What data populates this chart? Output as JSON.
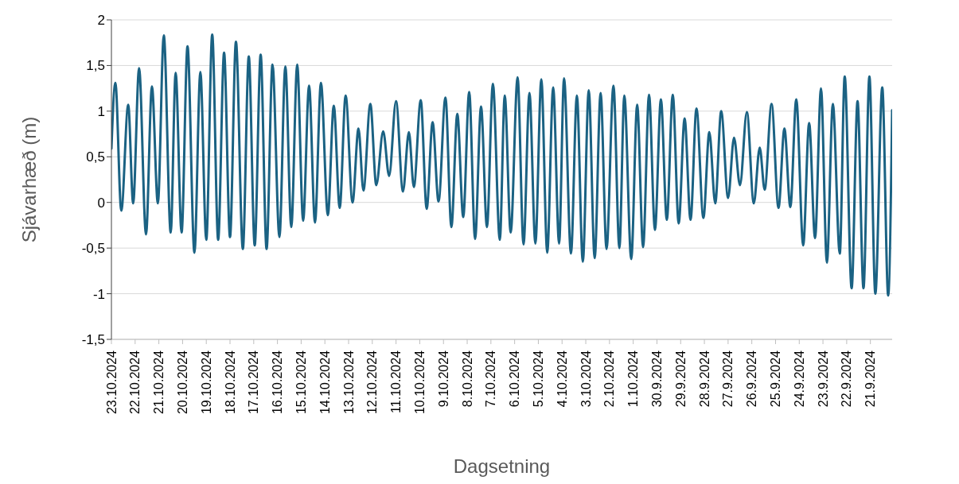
{
  "chart_data": {
    "type": "line",
    "xlabel": "Dagsetning",
    "ylabel": "Sjávarhæð (m)",
    "x": [
      "2024-10-23T00:00",
      "2024-10-22T20:00",
      "2024-10-22T14:00",
      "2024-10-22T07:00",
      "2024-10-22T02:00",
      "2024-10-21T20:00",
      "2024-10-21T13:00",
      "2024-10-21T07:00",
      "2024-10-21T01:00",
      "2024-10-20T19:00",
      "2024-10-20T12:00",
      "2024-10-20T07:00",
      "2024-10-20T01:00",
      "2024-10-19T19:00",
      "2024-10-19T12:00",
      "2024-10-19T06:00",
      "2024-10-19T00:00",
      "2024-10-18T18:00",
      "2024-10-18T12:00",
      "2024-10-18T06:00",
      "2024-10-18T00:00",
      "2024-10-17T18:00",
      "2024-10-17T11:00",
      "2024-10-17T05:00",
      "2024-10-16T23:00",
      "2024-10-16T17:00",
      "2024-10-16T11:00",
      "2024-10-16T05:00",
      "2024-10-15T22:00",
      "2024-10-15T16:00",
      "2024-10-15T10:00",
      "2024-10-15T04:00",
      "2024-10-14T22:00",
      "2024-10-14T16:00",
      "2024-10-14T10:00",
      "2024-10-14T04:00",
      "2024-10-13T21:00",
      "2024-10-13T15:00",
      "2024-10-13T09:00",
      "2024-10-13T03:00",
      "2024-10-12T20:00",
      "2024-10-12T14:00",
      "2024-10-12T09:00",
      "2024-10-12T02:00",
      "2024-10-11T20:00",
      "2024-10-11T13:00",
      "2024-10-11T07:00",
      "2024-10-11T00:00",
      "2024-10-10T17:00",
      "2024-10-10T11:00",
      "2024-10-10T06:00",
      "2024-10-09T23:00",
      "2024-10-09T17:00",
      "2024-10-09T11:00",
      "2024-10-09T05:00",
      "2024-10-08T22:00",
      "2024-10-08T16:00",
      "2024-10-08T10:00",
      "2024-10-08T04:00",
      "2024-10-07T22:00",
      "2024-10-07T16:00",
      "2024-10-07T10:00",
      "2024-10-07T04:00",
      "2024-10-06T22:00",
      "2024-10-06T15:00",
      "2024-10-06T10:00",
      "2024-10-06T04:00",
      "2024-10-05T21:00",
      "2024-10-05T15:00",
      "2024-10-05T09:00",
      "2024-10-05T03:00",
      "2024-10-04T21:00",
      "2024-10-04T15:00",
      "2024-10-04T09:00",
      "2024-10-04T03:00",
      "2024-10-03T22:00",
      "2024-10-03T15:00",
      "2024-10-03T09:00",
      "2024-10-03T03:00",
      "2024-10-02T21:00",
      "2024-10-02T15:00",
      "2024-10-02T09:00",
      "2024-10-02T03:00",
      "2024-10-01T20:00",
      "2024-10-01T14:00",
      "2024-10-01T09:00",
      "2024-10-01T02:00",
      "2024-09-30T20:00",
      "2024-09-30T14:00",
      "2024-09-30T08:00",
      "2024-09-30T02:00",
      "2024-09-29T20:00",
      "2024-09-29T14:00",
      "2024-09-29T08:00",
      "2024-09-29T02:00",
      "2024-09-28T20:00",
      "2024-09-28T14:00",
      "2024-09-28T08:00",
      "2024-09-28T01:00",
      "2024-09-27T19:00",
      "2024-09-27T13:00",
      "2024-09-27T07:00",
      "2024-09-27T00:00",
      "2024-09-26T18:00",
      "2024-09-26T12:00",
      "2024-09-26T05:00",
      "2024-09-25T22:00",
      "2024-09-25T16:00",
      "2024-09-25T11:00",
      "2024-09-25T04:00",
      "2024-09-24T21:00",
      "2024-09-24T15:00",
      "2024-09-24T09:00",
      "2024-09-24T03:00",
      "2024-09-23T20:00",
      "2024-09-23T14:00",
      "2024-09-23T08:00",
      "2024-09-23T02:00",
      "2024-09-22T20:00",
      "2024-09-22T14:00",
      "2024-09-22T07:00",
      "2024-09-22T02:00",
      "2024-09-21T19:00",
      "2024-09-21T13:00",
      "2024-09-21T07:00",
      "2024-09-21T01:00",
      "2024-09-20T19:00",
      "2024-09-20T12:00",
      "2024-09-20T06:00",
      "2024-09-20T02:00"
    ],
    "series": [
      {
        "color": "#1b6283",
        "values": [
          0.59,
          1.31,
          -0.09,
          1.07,
          -0.01,
          1.47,
          -0.35,
          1.27,
          -0.01,
          1.83,
          -0.33,
          1.42,
          -0.33,
          1.71,
          -0.55,
          1.43,
          -0.41,
          1.84,
          -0.41,
          1.64,
          -0.38,
          1.76,
          -0.51,
          1.6,
          -0.47,
          1.62,
          -0.51,
          1.51,
          -0.38,
          1.49,
          -0.27,
          1.51,
          -0.2,
          1.28,
          -0.22,
          1.31,
          -0.14,
          1.06,
          -0.06,
          1.17,
          0.0,
          0.81,
          0.13,
          1.08,
          0.19,
          0.78,
          0.29,
          1.11,
          0.12,
          0.77,
          0.17,
          1.12,
          -0.07,
          0.88,
          0.01,
          1.15,
          -0.27,
          0.97,
          -0.16,
          1.21,
          -0.4,
          1.05,
          -0.27,
          1.3,
          -0.41,
          1.17,
          -0.33,
          1.37,
          -0.46,
          1.2,
          -0.45,
          1.35,
          -0.55,
          1.26,
          -0.45,
          1.36,
          -0.56,
          1.17,
          -0.65,
          1.23,
          -0.61,
          1.2,
          -0.51,
          1.28,
          -0.5,
          1.17,
          -0.62,
          1.07,
          -0.49,
          1.18,
          -0.3,
          1.13,
          -0.19,
          1.18,
          -0.23,
          0.92,
          -0.19,
          1.03,
          -0.17,
          0.77,
          -0.01,
          1.0,
          0.05,
          0.71,
          0.19,
          0.99,
          -0.01,
          0.6,
          0.14,
          1.08,
          -0.06,
          0.81,
          -0.05,
          1.13,
          -0.47,
          0.87,
          -0.39,
          1.25,
          -0.66,
          1.08,
          -0.56,
          1.38,
          -0.94,
          1.11,
          -0.94,
          1.38,
          -1.0,
          1.26,
          -1.02,
          1.01
        ]
      }
    ],
    "xlim": [
      "2024-10-23T00:00",
      "2024-09-20T02:00"
    ],
    "xticks": [
      {
        "value": "2024-10-23",
        "label": "23.10.2024"
      },
      {
        "value": "2024-10-22",
        "label": "22.10.2024"
      },
      {
        "value": "2024-10-21",
        "label": "21.10.2024"
      },
      {
        "value": "2024-10-20",
        "label": "20.10.2024"
      },
      {
        "value": "2024-10-19",
        "label": "19.10.2024"
      },
      {
        "value": "2024-10-18",
        "label": "18.10.2024"
      },
      {
        "value": "2024-10-17",
        "label": "17.10.2024"
      },
      {
        "value": "2024-10-16",
        "label": "16.10.2024"
      },
      {
        "value": "2024-10-15",
        "label": "15.10.2024"
      },
      {
        "value": "2024-10-14",
        "label": "14.10.2024"
      },
      {
        "value": "2024-10-13",
        "label": "13.10.2024"
      },
      {
        "value": "2024-10-12",
        "label": "12.10.2024"
      },
      {
        "value": "2024-10-11",
        "label": "11.10.2024"
      },
      {
        "value": "2024-10-10",
        "label": "10.10.2024"
      },
      {
        "value": "2024-10-09",
        "label": "9.10.2024"
      },
      {
        "value": "2024-10-08",
        "label": "8.10.2024"
      },
      {
        "value": "2024-10-07",
        "label": "7.10.2024"
      },
      {
        "value": "2024-10-06",
        "label": "6.10.2024"
      },
      {
        "value": "2024-10-05",
        "label": "5.10.2024"
      },
      {
        "value": "2024-10-04",
        "label": "4.10.2024"
      },
      {
        "value": "2024-10-03",
        "label": "3.10.2024"
      },
      {
        "value": "2024-10-02",
        "label": "2.10.2024"
      },
      {
        "value": "2024-10-01",
        "label": "1.10.2024"
      },
      {
        "value": "2024-09-30",
        "label": "30.9.2024"
      },
      {
        "value": "2024-09-29",
        "label": "29.9.2024"
      },
      {
        "value": "2024-09-28",
        "label": "28.9.2024"
      },
      {
        "value": "2024-09-27",
        "label": "27.9.2024"
      },
      {
        "value": "2024-09-26",
        "label": "26.9.2024"
      },
      {
        "value": "2024-09-25",
        "label": "25.9.2024"
      },
      {
        "value": "2024-09-24",
        "label": "24.9.2024"
      },
      {
        "value": "2024-09-23",
        "label": "23.9.2024"
      },
      {
        "value": "2024-09-22",
        "label": "22.9.2024"
      },
      {
        "value": "2024-09-21",
        "label": "21.9.2024"
      }
    ],
    "ylim": [
      -1.5,
      2
    ],
    "yticks": [
      {
        "value": -1.5,
        "label": "-1,5"
      },
      -1,
      {
        "value": -0.5,
        "label": "-0,5"
      },
      0,
      {
        "value": 0.5,
        "label": "0,5"
      },
      1,
      {
        "value": 1.5,
        "label": "1,5"
      },
      2
    ],
    "grid": "y",
    "marker": "none",
    "line_style": "solid"
  }
}
